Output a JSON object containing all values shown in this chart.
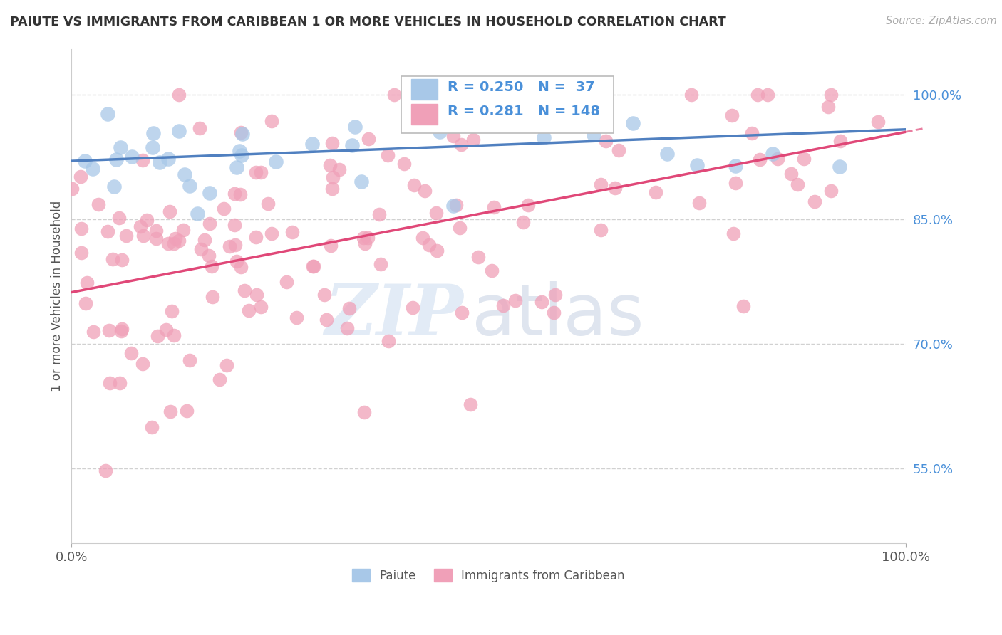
{
  "title": "PAIUTE VS IMMIGRANTS FROM CARIBBEAN 1 OR MORE VEHICLES IN HOUSEHOLD CORRELATION CHART",
  "source": "Source: ZipAtlas.com",
  "ylabel": "1 or more Vehicles in Household",
  "xlim": [
    0.0,
    1.0
  ],
  "ylim": [
    0.46,
    1.055
  ],
  "yticks": [
    0.55,
    0.7,
    0.85,
    1.0
  ],
  "ytick_labels": [
    "55.0%",
    "70.0%",
    "85.0%",
    "100.0%"
  ],
  "xtick_labels": [
    "0.0%",
    "100.0%"
  ],
  "watermark_zip": "ZIP",
  "watermark_atlas": "atlas",
  "R_paiute": 0.25,
  "N_paiute": 37,
  "R_carib": 0.281,
  "N_carib": 148,
  "paiute_color": "#a8c8e8",
  "carib_color": "#f0a0b8",
  "paiute_line_color": "#5080c0",
  "carib_line_color": "#e04878",
  "legend_label_paiute": "Paiute",
  "legend_label_carib": "Immigrants from Caribbean",
  "paiute_line_x0": 0.0,
  "paiute_line_x1": 1.0,
  "paiute_line_y0": 0.92,
  "paiute_line_y1": 0.958,
  "carib_line_x0": 0.0,
  "carib_line_x1": 1.0,
  "carib_line_y0": 0.762,
  "carib_line_y1": 0.955
}
